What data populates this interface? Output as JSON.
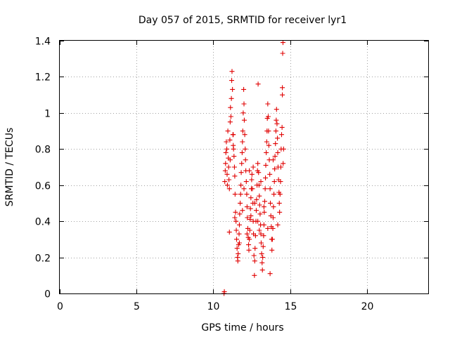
{
  "chart_data": {
    "type": "scatter",
    "title": "Day 057 of 2015, SRMTID for receiver lyr1",
    "xlabel": "GPS time / hours",
    "ylabel": "SRMTID / TECUs",
    "xlim": [
      0,
      24
    ],
    "ylim": [
      0,
      1.4
    ],
    "x_ticks": [
      "0",
      "5",
      "10",
      "15",
      "20"
    ],
    "y_ticks": [
      "0",
      "0.2",
      "0.4",
      "0.6",
      "0.8",
      "1",
      "1.2",
      "1.4"
    ],
    "grid": true,
    "marker": "+",
    "color": "#e00000",
    "series": [
      {
        "name": "lyr1",
        "points": [
          [
            10.7,
            0.0
          ],
          [
            10.72,
            0.01
          ],
          [
            10.75,
            0.62
          ],
          [
            10.78,
            0.68
          ],
          [
            10.8,
            0.72
          ],
          [
            10.82,
            0.78
          ],
          [
            10.85,
            0.84
          ],
          [
            10.88,
            0.8
          ],
          [
            10.9,
            0.66
          ],
          [
            10.92,
            0.6
          ],
          [
            10.95,
            0.9
          ],
          [
            10.98,
            0.75
          ],
          [
            11.0,
            0.7
          ],
          [
            11.02,
            0.63
          ],
          [
            11.05,
            0.58
          ],
          [
            11.05,
            0.34
          ],
          [
            11.08,
            0.85
          ],
          [
            11.1,
            0.95
          ],
          [
            11.12,
            1.03
          ],
          [
            11.15,
            0.98
          ],
          [
            11.18,
            1.08
          ],
          [
            11.2,
            1.18
          ],
          [
            11.22,
            1.23
          ],
          [
            11.25,
            1.13
          ],
          [
            11.28,
            0.88
          ],
          [
            11.3,
            0.82
          ],
          [
            11.32,
            0.8
          ],
          [
            11.35,
            0.76
          ],
          [
            11.38,
            0.7
          ],
          [
            11.4,
            0.65
          ],
          [
            11.42,
            0.55
          ],
          [
            11.45,
            0.45
          ],
          [
            11.48,
            0.4
          ],
          [
            11.5,
            0.35
          ],
          [
            11.52,
            0.3
          ],
          [
            11.55,
            0.25
          ],
          [
            11.58,
            0.2
          ],
          [
            11.6,
            0.18
          ],
          [
            11.62,
            0.22
          ],
          [
            11.65,
            0.27
          ],
          [
            11.68,
            0.33
          ],
          [
            11.7,
            0.38
          ],
          [
            11.72,
            0.44
          ],
          [
            11.75,
            0.5
          ],
          [
            11.78,
            0.55
          ],
          [
            11.8,
            0.6
          ],
          [
            11.82,
            0.67
          ],
          [
            11.85,
            0.72
          ],
          [
            11.88,
            0.78
          ],
          [
            11.9,
            0.84
          ],
          [
            11.92,
            0.9
          ],
          [
            11.95,
            1.0
          ],
          [
            11.98,
            1.13
          ],
          [
            12.0,
            1.05
          ],
          [
            12.02,
            0.96
          ],
          [
            12.05,
            0.88
          ],
          [
            12.08,
            0.8
          ],
          [
            12.1,
            0.74
          ],
          [
            12.12,
            0.68
          ],
          [
            12.15,
            0.62
          ],
          [
            12.18,
            0.55
          ],
          [
            12.2,
            0.48
          ],
          [
            12.22,
            0.42
          ],
          [
            12.25,
            0.36
          ],
          [
            12.28,
            0.31
          ],
          [
            12.3,
            0.27
          ],
          [
            12.32,
            0.24
          ],
          [
            12.35,
            0.3
          ],
          [
            12.38,
            0.35
          ],
          [
            12.4,
            0.41
          ],
          [
            12.42,
            0.47
          ],
          [
            12.45,
            0.53
          ],
          [
            12.48,
            0.58
          ],
          [
            12.5,
            0.63
          ],
          [
            12.52,
            0.66
          ],
          [
            12.55,
            0.58
          ],
          [
            12.58,
            0.5
          ],
          [
            12.6,
            0.4
          ],
          [
            12.62,
            0.33
          ],
          [
            12.65,
            0.21
          ],
          [
            12.68,
            0.1
          ],
          [
            12.7,
            0.18
          ],
          [
            12.72,
            0.25
          ],
          [
            12.75,
            0.32
          ],
          [
            12.78,
            0.4
          ],
          [
            12.8,
            0.46
          ],
          [
            12.82,
            0.52
          ],
          [
            12.85,
            0.6
          ],
          [
            12.88,
            0.68
          ],
          [
            12.9,
            0.72
          ],
          [
            12.92,
            1.16
          ],
          [
            12.95,
            0.67
          ],
          [
            12.98,
            0.6
          ],
          [
            13.0,
            0.54
          ],
          [
            13.02,
            0.49
          ],
          [
            13.05,
            0.44
          ],
          [
            13.08,
            0.38
          ],
          [
            13.1,
            0.33
          ],
          [
            13.12,
            0.28
          ],
          [
            13.15,
            0.22
          ],
          [
            13.18,
            0.17
          ],
          [
            13.2,
            0.13
          ],
          [
            13.22,
            0.2
          ],
          [
            13.25,
            0.26
          ],
          [
            13.28,
            0.32
          ],
          [
            13.3,
            0.38
          ],
          [
            13.32,
            0.45
          ],
          [
            13.35,
            0.51
          ],
          [
            13.38,
            0.58
          ],
          [
            13.4,
            0.64
          ],
          [
            13.42,
            0.71
          ],
          [
            13.45,
            0.78
          ],
          [
            13.48,
            0.84
          ],
          [
            13.5,
            0.9
          ],
          [
            13.52,
            0.97
          ],
          [
            13.55,
            1.05
          ],
          [
            13.58,
            0.98
          ],
          [
            13.6,
            0.9
          ],
          [
            13.62,
            0.82
          ],
          [
            13.65,
            0.74
          ],
          [
            13.68,
            0.66
          ],
          [
            13.7,
            0.58
          ],
          [
            13.72,
            0.5
          ],
          [
            13.75,
            0.43
          ],
          [
            13.78,
            0.37
          ],
          [
            13.8,
            0.3
          ],
          [
            13.82,
            0.24
          ],
          [
            13.85,
            0.3
          ],
          [
            13.88,
            0.36
          ],
          [
            13.9,
            0.42
          ],
          [
            13.92,
            0.48
          ],
          [
            13.95,
            0.55
          ],
          [
            13.98,
            0.62
          ],
          [
            14.0,
            0.69
          ],
          [
            14.02,
            0.76
          ],
          [
            14.05,
            0.83
          ],
          [
            14.08,
            0.9
          ],
          [
            14.1,
            0.96
          ],
          [
            14.12,
            1.02
          ],
          [
            14.15,
            0.94
          ],
          [
            14.18,
            0.86
          ],
          [
            14.2,
            0.78
          ],
          [
            14.22,
            0.7
          ],
          [
            14.25,
            0.63
          ],
          [
            14.28,
            0.56
          ],
          [
            14.3,
            0.5
          ],
          [
            14.32,
            0.45
          ],
          [
            14.35,
            0.55
          ],
          [
            14.38,
            0.62
          ],
          [
            14.4,
            0.7
          ],
          [
            14.42,
            0.8
          ],
          [
            14.45,
            0.88
          ],
          [
            14.48,
            0.92
          ],
          [
            14.5,
            1.1
          ],
          [
            14.5,
            1.14
          ],
          [
            14.52,
            1.33
          ],
          [
            14.54,
            1.39
          ],
          [
            14.55,
            0.72
          ],
          [
            14.58,
            0.8
          ],
          [
            13.7,
            0.11
          ],
          [
            12.2,
            0.33
          ],
          [
            12.45,
            0.43
          ],
          [
            13.0,
            0.35
          ],
          [
            11.7,
            0.28
          ],
          [
            12.9,
            0.4
          ],
          [
            13.3,
            0.48
          ],
          [
            11.4,
            0.42
          ],
          [
            12.0,
            0.58
          ],
          [
            12.6,
            0.7
          ],
          [
            13.9,
            0.74
          ],
          [
            11.1,
            0.74
          ],
          [
            11.3,
            0.88
          ],
          [
            14.2,
            0.38
          ],
          [
            12.7,
            0.5
          ],
          [
            13.1,
            0.62
          ],
          [
            11.9,
            0.46
          ],
          [
            12.35,
            0.68
          ],
          [
            13.55,
            0.36
          ]
        ]
      }
    ]
  }
}
